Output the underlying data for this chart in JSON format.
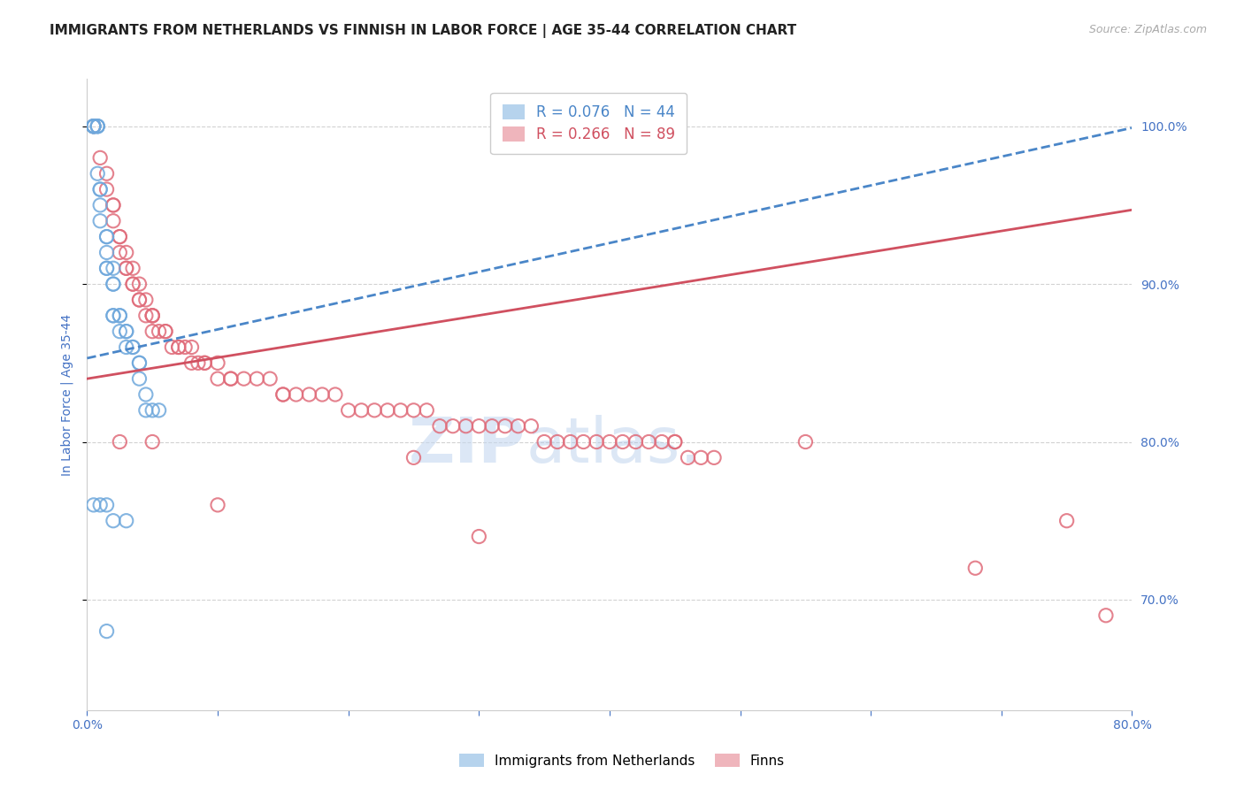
{
  "title": "IMMIGRANTS FROM NETHERLANDS VS FINNISH IN LABOR FORCE | AGE 35-44 CORRELATION CHART",
  "source": "Source: ZipAtlas.com",
  "ylabel": "In Labor Force | Age 35-44",
  "xlim": [
    0.0,
    0.8
  ],
  "ylim": [
    0.63,
    1.03
  ],
  "yticks": [
    0.7,
    0.8,
    0.9,
    1.0
  ],
  "ytick_labels": [
    "70.0%",
    "80.0%",
    "90.0%",
    "100.0%"
  ],
  "xticks": [
    0.0,
    0.1,
    0.2,
    0.3,
    0.4,
    0.5,
    0.6,
    0.7,
    0.8
  ],
  "xtick_labels": [
    "0.0%",
    "",
    "",
    "",
    "",
    "",
    "",
    "",
    "80.0%"
  ],
  "legend_blue_r": "R = 0.076",
  "legend_blue_n": "N = 44",
  "legend_pink_r": "R = 0.266",
  "legend_pink_n": "N = 89",
  "blue_color": "#6fa8dc",
  "pink_color": "#e06c7a",
  "blue_line_color": "#4a86c8",
  "pink_line_color": "#d05060",
  "watermark_zip": "ZIP",
  "watermark_atlas": "atlas.",
  "blue_scatter_x": [
    0.005,
    0.005,
    0.005,
    0.005,
    0.005,
    0.008,
    0.008,
    0.008,
    0.008,
    0.01,
    0.01,
    0.01,
    0.01,
    0.015,
    0.015,
    0.015,
    0.015,
    0.015,
    0.02,
    0.02,
    0.02,
    0.02,
    0.02,
    0.025,
    0.025,
    0.025,
    0.03,
    0.03,
    0.03,
    0.035,
    0.035,
    0.04,
    0.04,
    0.04,
    0.045,
    0.045,
    0.05,
    0.055,
    0.005,
    0.01,
    0.015,
    0.02,
    0.03,
    0.015
  ],
  "blue_scatter_y": [
    1.0,
    1.0,
    1.0,
    1.0,
    1.0,
    1.0,
    1.0,
    1.0,
    0.97,
    0.96,
    0.96,
    0.95,
    0.94,
    0.93,
    0.93,
    0.92,
    0.91,
    0.91,
    0.91,
    0.9,
    0.9,
    0.88,
    0.88,
    0.88,
    0.88,
    0.87,
    0.87,
    0.87,
    0.86,
    0.86,
    0.86,
    0.85,
    0.85,
    0.84,
    0.83,
    0.82,
    0.82,
    0.82,
    0.76,
    0.76,
    0.76,
    0.75,
    0.75,
    0.68
  ],
  "pink_scatter_x": [
    0.005,
    0.01,
    0.015,
    0.015,
    0.02,
    0.02,
    0.02,
    0.025,
    0.025,
    0.025,
    0.03,
    0.03,
    0.03,
    0.035,
    0.035,
    0.035,
    0.04,
    0.04,
    0.04,
    0.045,
    0.045,
    0.05,
    0.05,
    0.05,
    0.05,
    0.055,
    0.06,
    0.06,
    0.065,
    0.07,
    0.07,
    0.075,
    0.08,
    0.08,
    0.085,
    0.09,
    0.09,
    0.1,
    0.1,
    0.11,
    0.11,
    0.12,
    0.13,
    0.14,
    0.15,
    0.16,
    0.17,
    0.18,
    0.19,
    0.2,
    0.21,
    0.22,
    0.23,
    0.24,
    0.25,
    0.26,
    0.27,
    0.28,
    0.29,
    0.3,
    0.31,
    0.32,
    0.33,
    0.34,
    0.35,
    0.36,
    0.37,
    0.38,
    0.39,
    0.4,
    0.41,
    0.42,
    0.43,
    0.44,
    0.45,
    0.46,
    0.47,
    0.48,
    0.025,
    0.05,
    0.1,
    0.15,
    0.25,
    0.3,
    0.45,
    0.55,
    0.68,
    0.75,
    0.78
  ],
  "pink_scatter_y": [
    1.0,
    0.98,
    0.97,
    0.96,
    0.95,
    0.95,
    0.94,
    0.93,
    0.93,
    0.92,
    0.92,
    0.91,
    0.91,
    0.91,
    0.9,
    0.9,
    0.9,
    0.89,
    0.89,
    0.89,
    0.88,
    0.88,
    0.88,
    0.88,
    0.87,
    0.87,
    0.87,
    0.87,
    0.86,
    0.86,
    0.86,
    0.86,
    0.86,
    0.85,
    0.85,
    0.85,
    0.85,
    0.85,
    0.84,
    0.84,
    0.84,
    0.84,
    0.84,
    0.84,
    0.83,
    0.83,
    0.83,
    0.83,
    0.83,
    0.82,
    0.82,
    0.82,
    0.82,
    0.82,
    0.82,
    0.82,
    0.81,
    0.81,
    0.81,
    0.81,
    0.81,
    0.81,
    0.81,
    0.81,
    0.8,
    0.8,
    0.8,
    0.8,
    0.8,
    0.8,
    0.8,
    0.8,
    0.8,
    0.8,
    0.8,
    0.79,
    0.79,
    0.79,
    0.8,
    0.8,
    0.76,
    0.83,
    0.79,
    0.74,
    0.8,
    0.8,
    0.72,
    0.75,
    0.69
  ],
  "blue_trend_x": [
    0.0,
    0.8
  ],
  "blue_trend_y": [
    0.853,
    0.999
  ],
  "pink_trend_x": [
    0.0,
    0.8
  ],
  "pink_trend_y": [
    0.84,
    0.947
  ],
  "background_color": "#ffffff",
  "grid_color": "#c0c0c0",
  "title_fontsize": 11,
  "label_fontsize": 10,
  "tick_fontsize": 10,
  "axis_label_color": "#4472c4",
  "tick_label_color": "#4472c4"
}
